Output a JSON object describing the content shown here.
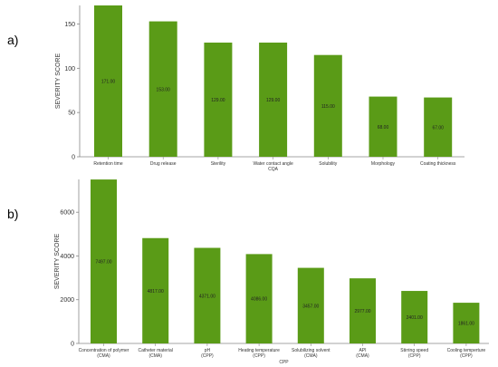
{
  "panels": [
    {
      "label": "a)",
      "chart_data": {
        "type": "bar",
        "title": "",
        "ylabel": "SEVERITY SCORE",
        "xlabel": "",
        "ylim": [
          0,
          171
        ],
        "yticks": [
          0,
          50,
          100,
          150
        ],
        "color": "#5a9b17",
        "categories": [
          [
            "Retention time"
          ],
          [
            "Drug release"
          ],
          [
            "Sterility"
          ],
          [
            "Water contact angle",
            "CQA"
          ],
          [
            "Solubility"
          ],
          [
            "Morphology"
          ],
          [
            "Coating thickness"
          ]
        ],
        "values": [
          171,
          153,
          129,
          129,
          115,
          68,
          67
        ],
        "value_labels": [
          "171.00",
          "153.00",
          "129.00",
          "129.00",
          "115.00",
          "68.00",
          "67.00"
        ]
      }
    },
    {
      "label": "b)",
      "chart_data": {
        "type": "bar",
        "title": "",
        "ylabel": "SEVERITY SCORE",
        "xlabel": "CPP",
        "ylim": [
          0,
          7500
        ],
        "yticks": [
          0,
          2000,
          4000,
          6000
        ],
        "color": "#5a9b17",
        "categories": [
          [
            "Concentration of polymer",
            "(CMA)"
          ],
          [
            "Catheter material",
            "(CMA)"
          ],
          [
            "pH",
            "(CPP)"
          ],
          [
            "Heating temperature",
            "(CPP)"
          ],
          [
            "Solubilizing solvent",
            "(CMA)"
          ],
          [
            "API",
            "(CMA)"
          ],
          [
            "Stirring speed",
            "(CPP)"
          ],
          [
            "Cooling temperture",
            "(CPP)"
          ]
        ],
        "values": [
          7497,
          4817,
          4371,
          4086,
          3457,
          2977,
          2401,
          1861
        ],
        "value_labels": [
          "7497.00",
          "4817.00",
          "4371.00",
          "4086.00",
          "3457.00",
          "2977.00",
          "2401.00",
          "1861.00"
        ]
      }
    }
  ]
}
